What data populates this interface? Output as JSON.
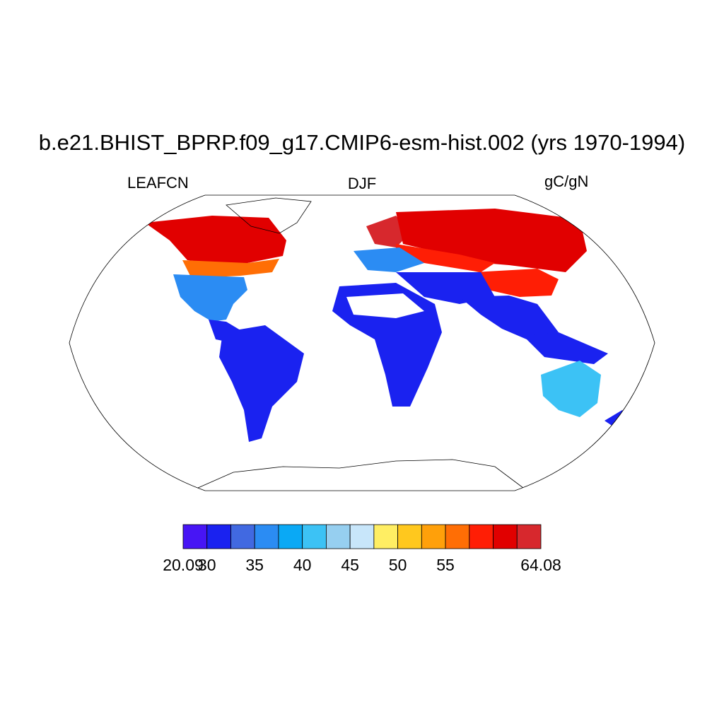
{
  "title": "b.e21.BHIST_BPRP.f09_g17.CMIP6-esm-hist.002 (yrs 1970-1994)",
  "variable": "LEAFCN",
  "season": "DJF",
  "units": "gC/gN",
  "colorbar": {
    "colors": [
      "#4715f5",
      "#1a22f0",
      "#4169e1",
      "#2b8cf3",
      "#0aa9f5",
      "#3cc2f5",
      "#96cff0",
      "#c8e6fa",
      "#ffee63",
      "#ffc81e",
      "#ffa00a",
      "#ff6e05",
      "#ff1e05",
      "#e10000",
      "#d7282d"
    ],
    "labels": [
      "20.09",
      "30",
      "35",
      "40",
      "45",
      "50",
      "55",
      "64.08"
    ],
    "label_index": [
      0,
      1,
      3,
      5,
      7,
      9,
      11,
      15
    ]
  }
}
